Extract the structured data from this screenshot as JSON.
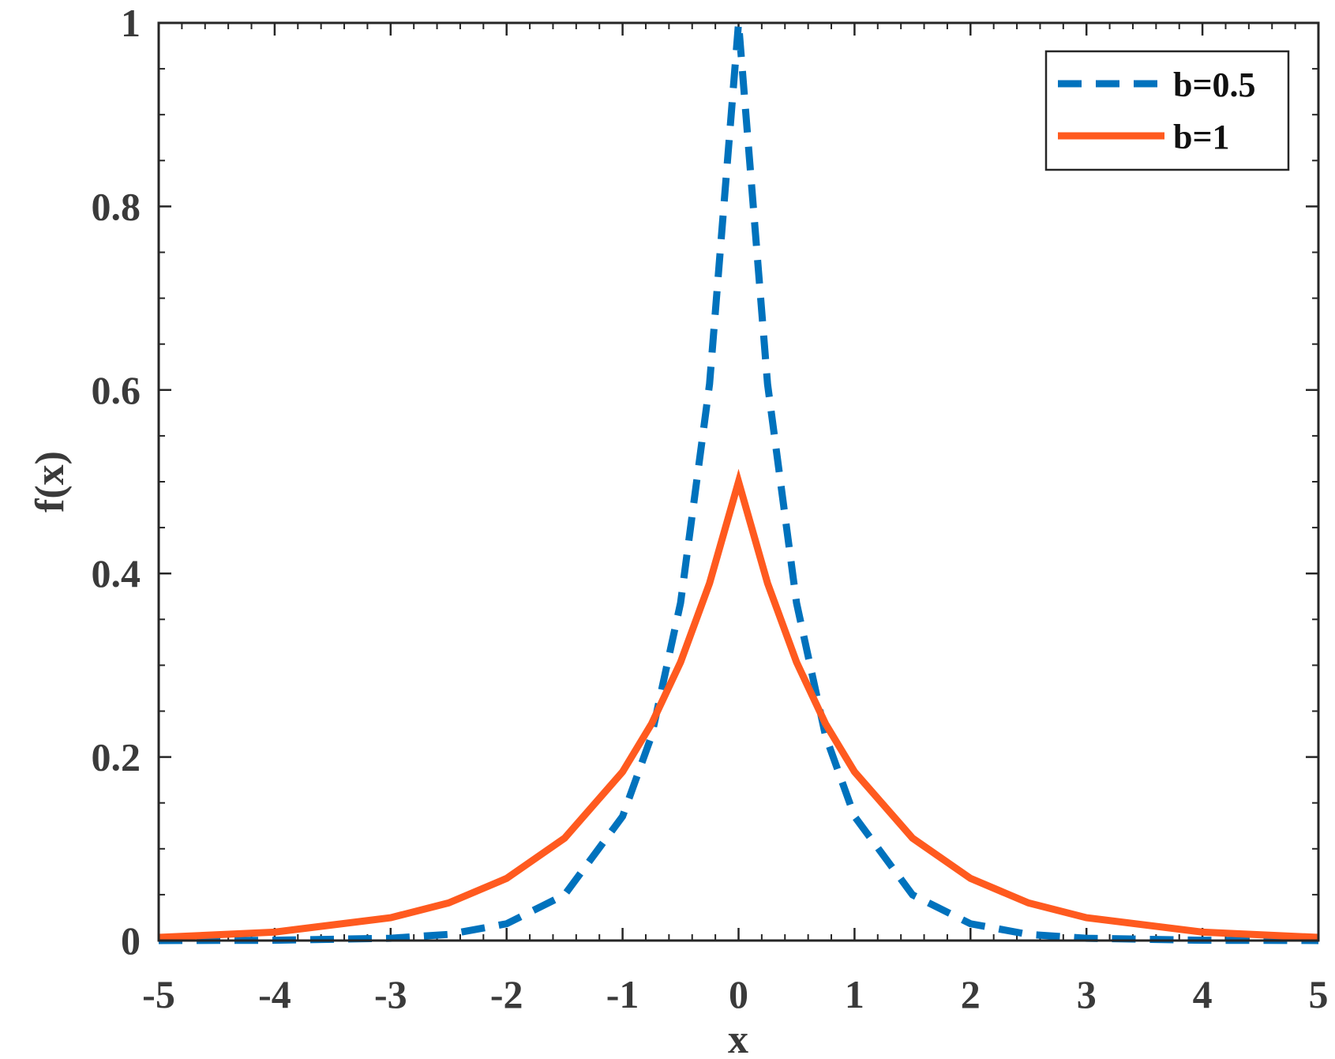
{
  "chart_data": {
    "type": "line",
    "title": "",
    "xlabel": "x",
    "ylabel": "f(x)",
    "xlim": [
      -5,
      5
    ],
    "ylim": [
      0,
      1
    ],
    "x_ticks": [
      "-5",
      "-4",
      "-3",
      "-2",
      "-1",
      "0",
      "1",
      "2",
      "3",
      "4",
      "5"
    ],
    "y_ticks": [
      "0",
      "0.2",
      "0.4",
      "0.6",
      "0.8",
      "1"
    ],
    "grid": false,
    "legend_position": "top-right",
    "series": [
      {
        "name": "b=0.5",
        "color": "#0072BD",
        "line_style": "dashed",
        "x": [
          -5,
          -4,
          -3,
          -2.5,
          -2,
          -1.5,
          -1,
          -0.75,
          -0.5,
          -0.25,
          0,
          0.25,
          0.5,
          0.75,
          1,
          1.5,
          2,
          2.5,
          3,
          4,
          5
        ],
        "values": [
          5e-05,
          0.0003,
          0.0025,
          0.0067,
          0.0183,
          0.0498,
          0.1353,
          0.2231,
          0.3679,
          0.6065,
          1.0,
          0.6065,
          0.3679,
          0.2231,
          0.1353,
          0.0498,
          0.0183,
          0.0067,
          0.0025,
          0.0003,
          5e-05
        ]
      },
      {
        "name": "b=1",
        "color": "#FF5A1F",
        "line_style": "solid",
        "x": [
          -5,
          -4,
          -3,
          -2.5,
          -2,
          -1.5,
          -1,
          -0.75,
          -0.5,
          -0.25,
          0,
          0.25,
          0.5,
          0.75,
          1,
          1.5,
          2,
          2.5,
          3,
          4,
          5
        ],
        "values": [
          0.0034,
          0.0092,
          0.0249,
          0.041,
          0.0677,
          0.1116,
          0.1839,
          0.2362,
          0.3033,
          0.3894,
          0.5,
          0.3894,
          0.3033,
          0.2362,
          0.1839,
          0.1116,
          0.0677,
          0.041,
          0.0249,
          0.0092,
          0.0034
        ]
      }
    ]
  }
}
